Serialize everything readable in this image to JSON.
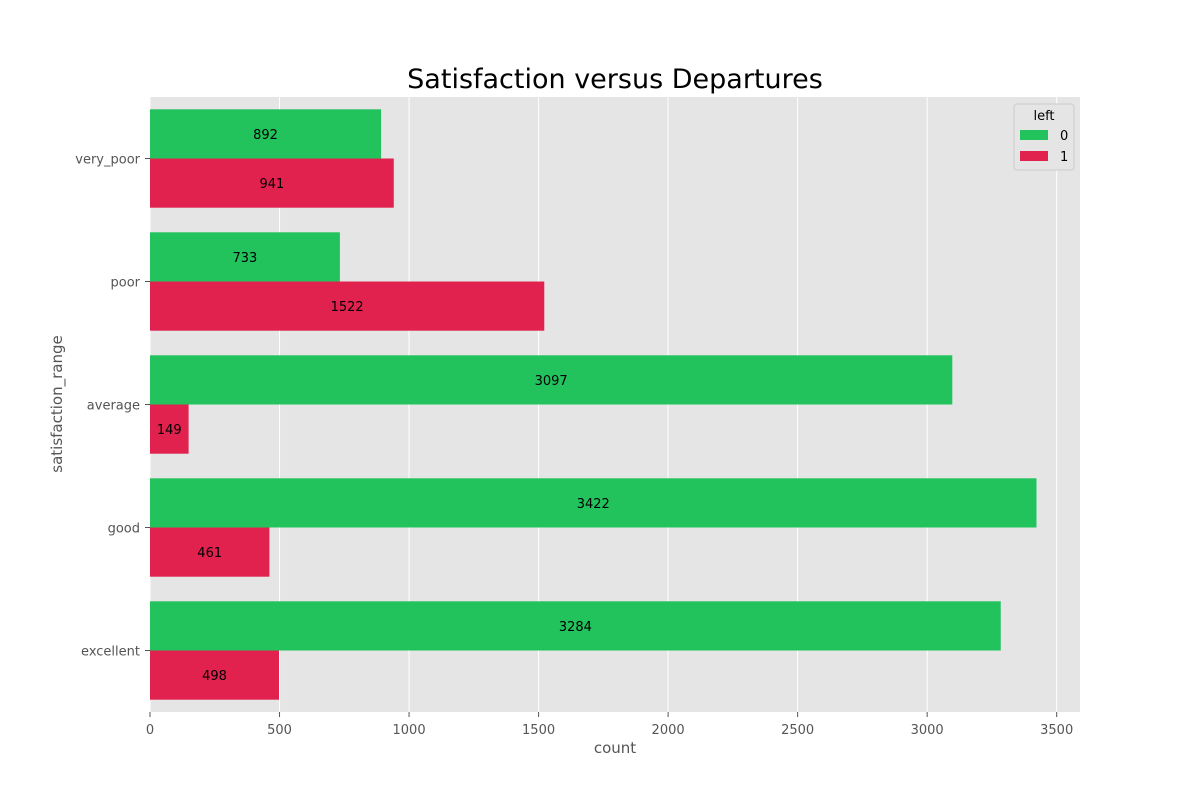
{
  "chart_data": {
    "type": "bar",
    "orientation": "horizontal",
    "title": "Satisfaction versus Departures",
    "xlabel": "count",
    "ylabel": "satisfaction_range",
    "categories": [
      "very_poor",
      "poor",
      "average",
      "good",
      "excellent"
    ],
    "series": [
      {
        "name": "0",
        "values": [
          892,
          733,
          3097,
          3422,
          3284
        ],
        "color": "#22c35d"
      },
      {
        "name": "1",
        "values": [
          941,
          1522,
          149,
          461,
          498
        ],
        "color": "#e1224f"
      }
    ],
    "xlim": [
      0,
      3590
    ],
    "xticks": [
      0,
      500,
      1000,
      1500,
      2000,
      2500,
      3000,
      3500
    ],
    "grid": true,
    "background": "#e5e5e5",
    "legend": {
      "title": "left",
      "placement": "top-right"
    }
  }
}
